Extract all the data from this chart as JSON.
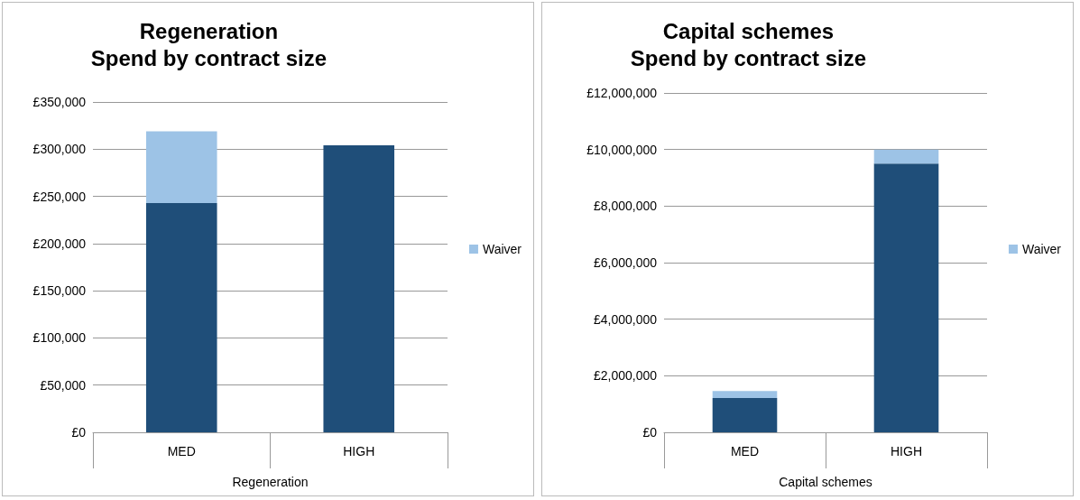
{
  "chart_data": [
    {
      "type": "bar",
      "title": "Regeneration",
      "subtitle": "Spend by contract size",
      "xlabel": "Regeneration",
      "categories": [
        "MED",
        "HIGH"
      ],
      "stacked": true,
      "grid": "y",
      "legend": "right",
      "series": [
        {
          "color": "#1f4e79",
          "values": [
            243000,
            304000
          ]
        },
        {
          "name": "Waiver",
          "color": "#9dc3e6",
          "values": [
            76000,
            0
          ]
        }
      ],
      "ylim": [
        0,
        350000
      ],
      "yticks": [
        {
          "value": 0,
          "label": "£0"
        },
        {
          "value": 50000,
          "label": "£50,000"
        },
        {
          "value": 100000,
          "label": "£100,000"
        },
        {
          "value": 150000,
          "label": "£150,000"
        },
        {
          "value": 200000,
          "label": "£200,000"
        },
        {
          "value": 250000,
          "label": "£250,000"
        },
        {
          "value": 300000,
          "label": "£300,000"
        },
        {
          "value": 350000,
          "label": "£350,000"
        }
      ]
    },
    {
      "type": "bar",
      "title": "Capital schemes",
      "subtitle": "Spend by contract size",
      "xlabel": "Capital schemes",
      "categories": [
        "MED",
        "HIGH"
      ],
      "stacked": true,
      "grid": "y",
      "legend": "right",
      "series": [
        {
          "color": "#1f4e79",
          "values": [
            1210000,
            9500000
          ]
        },
        {
          "name": "Waiver",
          "color": "#9dc3e6",
          "values": [
            250000,
            500000
          ]
        }
      ],
      "ylim": [
        0,
        12000000
      ],
      "yticks": [
        {
          "value": 0,
          "label": "£0"
        },
        {
          "value": 2000000,
          "label": "£2,000,000"
        },
        {
          "value": 4000000,
          "label": "£4,000,000"
        },
        {
          "value": 6000000,
          "label": "£6,000,000"
        },
        {
          "value": 8000000,
          "label": "£8,000,000"
        },
        {
          "value": 10000000,
          "label": "£10,000,000"
        },
        {
          "value": 12000000,
          "label": "£12,000,000"
        }
      ]
    }
  ]
}
